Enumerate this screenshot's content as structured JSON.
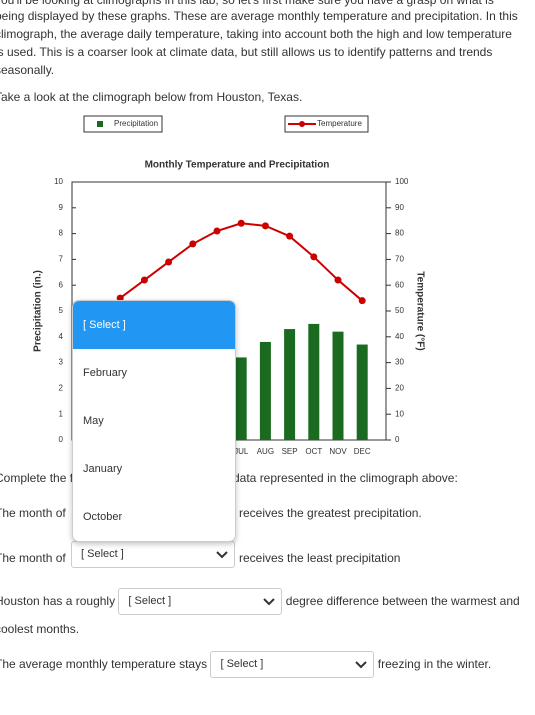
{
  "intro": {
    "lines": [
      "you'll be looking at climographs in this lab, so let's first make sure you have a grasp on what is",
      "being displayed by these graphs. These are average monthly temperature and precipitation. In this",
      "climograph, the average daily temperature, taking into account both the high and low temperature",
      "is used. This is a coarser look at climate data, but still allows us to identify patterns and trends",
      "seasonally."
    ],
    "prompt": "Take a look at the climograph below from Houston, Texas."
  },
  "chart_data": {
    "type": "combo",
    "title": "Monthly Temperature and Precipitation",
    "categories": [
      null,
      null,
      null,
      null,
      null,
      null,
      "JUL",
      "AUG",
      "SEP",
      "OCT",
      "NOV",
      "DEC"
    ],
    "series": [
      {
        "name": "Precipitation",
        "color": "#1a6b1f",
        "values": [
          null,
          null,
          null,
          null,
          null,
          null,
          3.2,
          3.8,
          4.3,
          4.5,
          4.2,
          3.7
        ]
      },
      {
        "name": "Temperature",
        "color": "#cc0000",
        "axis": "y2",
        "values": [
          null,
          55,
          62,
          69,
          76,
          81,
          84,
          83,
          79,
          71,
          62,
          54
        ]
      }
    ],
    "y_label": "Precipitation (in.)",
    "y2_label": "Temperature (°F)",
    "ylim": [
      0,
      10
    ],
    "yticks": [
      0,
      1,
      2,
      3,
      4,
      5,
      6,
      7,
      8,
      9,
      10
    ],
    "y2lim": [
      0,
      100
    ],
    "y2ticks": [
      0,
      10,
      20,
      30,
      40,
      50,
      60,
      70,
      80,
      90,
      100
    ]
  },
  "dropdown_menu": {
    "options": [
      "[ Select ]",
      "February",
      "May",
      "January",
      "October"
    ]
  },
  "questions": {
    "intro_start": "Complete the f",
    "intro_end": "data represented in the climograph above:",
    "q1": {
      "before": "The month of",
      "after": "receives the greatest precipitation."
    },
    "q2": {
      "before": "The month of",
      "select": "[ Select ]",
      "after": "receives the least precipitation"
    },
    "q3": {
      "before": "Houston has a roughly",
      "select": "[ Select ]",
      "after": "degree difference between the warmest and coolest months."
    },
    "q4": {
      "before": "The average monthly temperature stays",
      "select": "[ Select ]",
      "after": "freezing in the winter."
    }
  }
}
